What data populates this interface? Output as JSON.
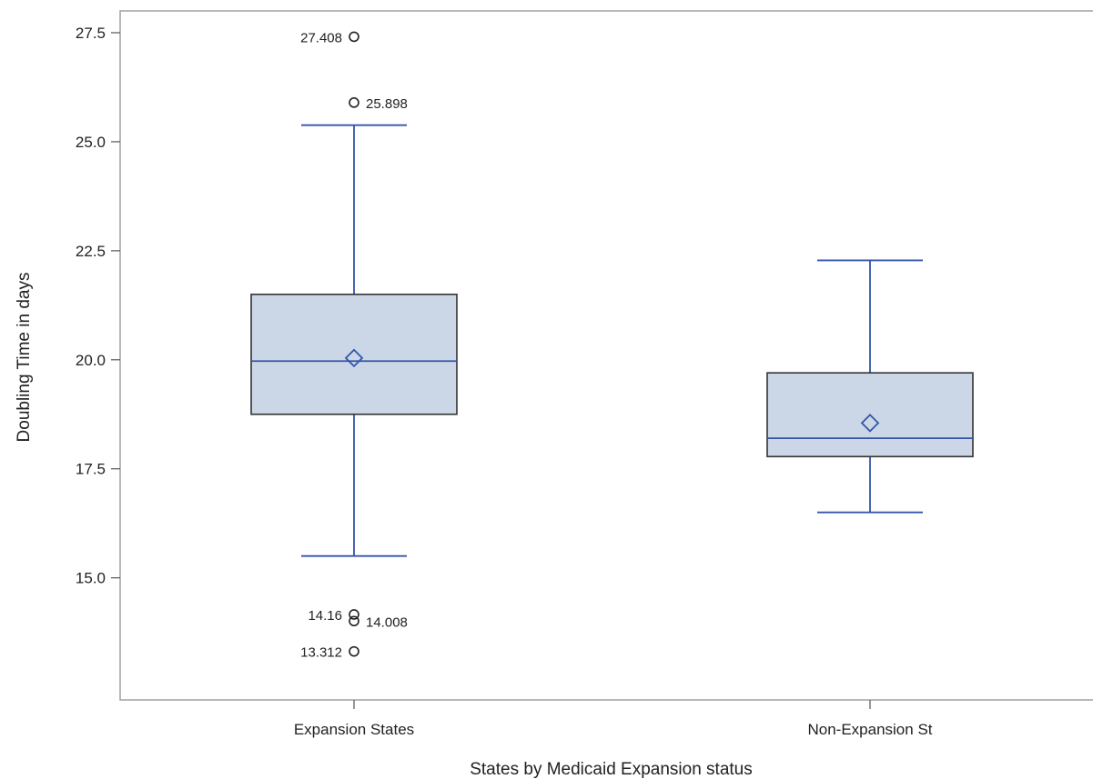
{
  "chart_data": {
    "type": "box",
    "xlabel": "States by Medicaid Expansion status",
    "ylabel": "Doubling Time in days",
    "ylim": [
      12.2,
      28.0
    ],
    "yticks": [
      15.0,
      17.5,
      20.0,
      22.5,
      25.0,
      27.5
    ],
    "ytick_labels": [
      "15.0",
      "17.5",
      "20.0",
      "22.5",
      "25.0",
      "27.5"
    ],
    "grid": false,
    "categories": [
      "Expansion States",
      "Non-Expansion St"
    ],
    "boxes": [
      {
        "category": "Expansion States",
        "whisker_low": 15.5,
        "q1": 18.75,
        "median": 19.97,
        "q3": 21.5,
        "whisker_high": 25.38,
        "mean": 20.04,
        "outliers": [
          {
            "value": 27.408,
            "label": "27.408",
            "label_side": "left"
          },
          {
            "value": 25.898,
            "label": "25.898",
            "label_side": "right"
          },
          {
            "value": 14.16,
            "label": "14.16",
            "label_side": "left"
          },
          {
            "value": 14.008,
            "label": "14.008",
            "label_side": "right"
          },
          {
            "value": 13.312,
            "label": "13.312",
            "label_side": "left"
          }
        ]
      },
      {
        "category": "Non-Expansion St",
        "whisker_low": 16.5,
        "q1": 17.78,
        "median": 18.2,
        "q3": 19.7,
        "whisker_high": 22.28,
        "mean": 18.55,
        "outliers": []
      }
    ],
    "colors": {
      "box_fill": "#cbd6e6",
      "box_edge": "#333333",
      "whisker": "#3355aa",
      "median": "#3355aa",
      "mean_marker": "#3355aa",
      "outlier": "#222222",
      "frame": "#a0a0a0"
    }
  }
}
